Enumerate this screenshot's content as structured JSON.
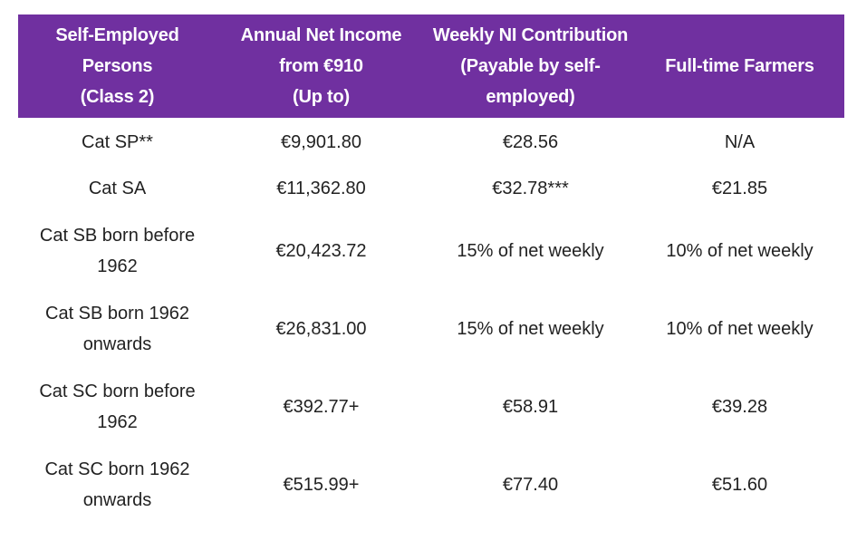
{
  "table": {
    "header": {
      "col1": [
        "Self-Employed",
        "Persons",
        "(Class 2)"
      ],
      "col2": [
        "Annual Net Income",
        "from €910",
        "(Up to)"
      ],
      "col3": [
        "Weekly NI Contribution",
        "(Payable by self-",
        "employed)"
      ],
      "col4": [
        "Full-time Farmers"
      ]
    },
    "rows": [
      {
        "category": [
          "Cat SP**"
        ],
        "income": "€9,901.80",
        "weekly": "€28.56",
        "farmers": "N/A"
      },
      {
        "category": [
          "Cat SA"
        ],
        "income": "€11,362.80",
        "weekly": "€32.78***",
        "farmers": "€21.85"
      },
      {
        "category": [
          "Cat SB born before",
          "1962"
        ],
        "income": "€20,423.72",
        "weekly": "15% of net weekly",
        "farmers": "10% of net weekly"
      },
      {
        "category": [
          "Cat SB born 1962",
          "onwards"
        ],
        "income": "€26,831.00",
        "weekly": "15% of net weekly",
        "farmers": "10% of net weekly"
      },
      {
        "category": [
          "Cat SC born before",
          "1962"
        ],
        "income": "€392.77+",
        "weekly": "€58.91",
        "farmers": "€39.28"
      },
      {
        "category": [
          "Cat SC born 1962",
          "onwards"
        ],
        "income": "€515.99+",
        "weekly": "€77.40",
        "farmers": "€51.60"
      }
    ]
  },
  "colors": {
    "header_bg": "#7030a0",
    "header_text": "#ffffff",
    "body_text": "#222222"
  }
}
